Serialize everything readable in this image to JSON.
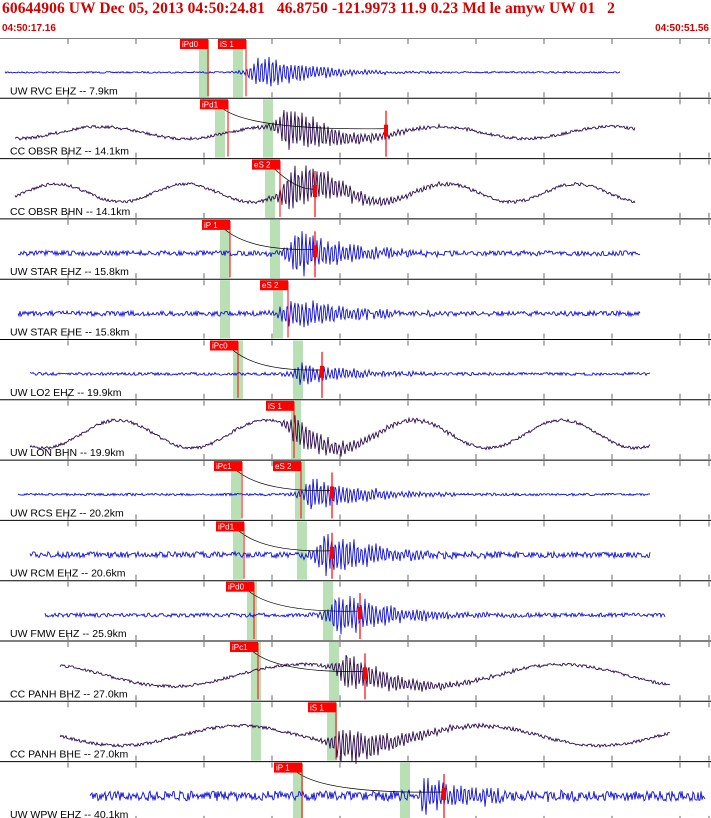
{
  "header": {
    "title": "60644906 UW Dec 05, 2013 04:50:24.81   46.8750 -121.9973 11.9 0.23 Md le amyw UW 01   2",
    "start_time": "04:50:17.16",
    "end_time": "04:50:51.56"
  },
  "colors": {
    "title_red": "#d40000",
    "trace_blue": "#1010d8",
    "trace_purple": "#2a0a50",
    "pick_red": "#ff0000",
    "window_green": "#b9dfb4"
  },
  "traces": [
    {
      "label": "UW RVC EHZ -- 7.9km",
      "color": "blue",
      "picks": [
        "iPd0",
        "iS 1"
      ]
    },
    {
      "label": "CC OBSR BHZ -- 14.1km",
      "color": "purple",
      "picks": [
        "iPd1"
      ]
    },
    {
      "label": "CC OBSR BHN -- 14.1km",
      "color": "purple",
      "picks": [
        "eS 2"
      ]
    },
    {
      "label": "UW STAR EHZ -- 15.8km",
      "color": "blue",
      "picks": [
        "iP 1"
      ]
    },
    {
      "label": "UW STAR EHE -- 15.8km",
      "color": "blue",
      "picks": [
        "eS 2"
      ]
    },
    {
      "label": "UW LO2 EHZ -- 19.9km",
      "color": "blue",
      "picks": [
        "iPc0"
      ]
    },
    {
      "label": "UW LON BHN -- 19.9km",
      "color": "purple",
      "picks": [
        "iS 1"
      ]
    },
    {
      "label": "UW RCS EHZ -- 20.2km",
      "color": "blue",
      "picks": [
        "iPc1",
        "eS 2"
      ]
    },
    {
      "label": "UW RCM EHZ -- 20.6km",
      "color": "blue",
      "picks": [
        "iPd1"
      ]
    },
    {
      "label": "UW FMW EHZ -- 25.9km",
      "color": "blue",
      "picks": [
        "iPd0"
      ]
    },
    {
      "label": "CC PANH BHZ -- 27.0km",
      "color": "purple",
      "picks": [
        "iPc1"
      ]
    },
    {
      "label": "CC PANH BHE -- 27.0km",
      "color": "purple",
      "picks": [
        "iS 1"
      ]
    },
    {
      "label": "UW WPW EHZ -- 40.1km",
      "color": "blue",
      "picks": [
        "iP 1"
      ]
    }
  ]
}
